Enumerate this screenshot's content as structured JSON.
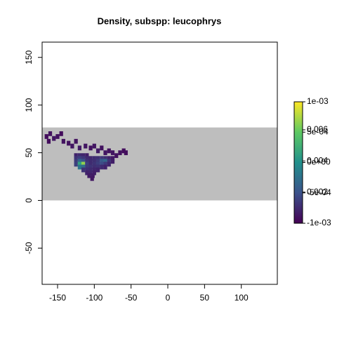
{
  "chart_data": {
    "type": "raster",
    "title": "Density, subspp: leucophrys",
    "xlim": [
      -171,
      149
    ],
    "ylim": [
      -88,
      166
    ],
    "xticks": [
      -150,
      -100,
      -50,
      0,
      50,
      100
    ],
    "yticks": [
      -50,
      0,
      50,
      100,
      150
    ],
    "extent_y": [
      0,
      76.5
    ],
    "background_color": "#bebebe",
    "cell_size": 5,
    "colormap": [
      "#440154",
      "#3b528b",
      "#21908c",
      "#5dc963",
      "#fde725"
    ],
    "cells": [
      [
        -165,
        67,
        0.0003
      ],
      [
        -160,
        70,
        0.0004
      ],
      [
        -155,
        65,
        0.0005
      ],
      [
        -150,
        67,
        0.0004
      ],
      [
        -145,
        70,
        0.0003
      ],
      [
        -142,
        62,
        0.0004
      ],
      [
        -162,
        62,
        0.0003
      ],
      [
        -135,
        60,
        0.0004
      ],
      [
        -130,
        57,
        0.0005
      ],
      [
        -125,
        62,
        0.0004
      ],
      [
        -120,
        55,
        0.0006
      ],
      [
        -112,
        57,
        0.0005
      ],
      [
        -105,
        55,
        0.0004
      ],
      [
        -100,
        57,
        0.0005
      ],
      [
        -95,
        52,
        0.0006
      ],
      [
        -90,
        55,
        0.0004
      ],
      [
        -85,
        50,
        0.0005
      ],
      [
        -80,
        52,
        0.0004
      ],
      [
        -75,
        50,
        0.0005
      ],
      [
        -70,
        47,
        0.0004
      ],
      [
        -65,
        50,
        0.0004
      ],
      [
        -60,
        52,
        0.0003
      ],
      [
        -57,
        50,
        0.0003
      ],
      [
        -125,
        47,
        0.0008
      ],
      [
        -120,
        47,
        0.001
      ],
      [
        -115,
        47,
        0.0009
      ],
      [
        -110,
        47,
        0.0007
      ],
      [
        -125,
        44,
        0.0012
      ],
      [
        -120,
        44,
        0.0015
      ],
      [
        -115,
        44,
        0.0013
      ],
      [
        -110,
        44,
        0.001
      ],
      [
        -105,
        44,
        0.0009
      ],
      [
        -100,
        44,
        0.001
      ],
      [
        -95,
        44,
        0.0011
      ],
      [
        -90,
        44,
        0.0013
      ],
      [
        -85,
        44,
        0.0011
      ],
      [
        -80,
        44,
        0.0008
      ],
      [
        -75,
        44,
        0.0006
      ],
      [
        -125,
        41,
        0.0014
      ],
      [
        -120,
        41,
        0.0025
      ],
      [
        -115,
        41,
        0.002
      ],
      [
        -110,
        41,
        0.0012
      ],
      [
        -105,
        41,
        0.001
      ],
      [
        -100,
        41,
        0.0011
      ],
      [
        -95,
        41,
        0.0014
      ],
      [
        -90,
        41,
        0.0022
      ],
      [
        -85,
        41,
        0.0026
      ],
      [
        -80,
        41,
        0.0012
      ],
      [
        -75,
        41,
        0.0007
      ],
      [
        -125,
        38,
        0.0015
      ],
      [
        -120,
        38,
        0.0045
      ],
      [
        -115,
        38,
        0.0065
      ],
      [
        -110,
        38,
        0.0015
      ],
      [
        -105,
        38,
        0.001
      ],
      [
        -100,
        38,
        0.0012
      ],
      [
        -95,
        38,
        0.0015
      ],
      [
        -90,
        38,
        0.0018
      ],
      [
        -85,
        38,
        0.0014
      ],
      [
        -80,
        38,
        0.0009
      ],
      [
        -120,
        35,
        0.003
      ],
      [
        -115,
        35,
        0.0028
      ],
      [
        -110,
        35,
        0.0014
      ],
      [
        -105,
        35,
        0.0012
      ],
      [
        -100,
        35,
        0.0011
      ],
      [
        -95,
        35,
        0.0012
      ],
      [
        -90,
        35,
        0.001
      ],
      [
        -85,
        35,
        0.0008
      ],
      [
        -115,
        32,
        0.0012
      ],
      [
        -110,
        32,
        0.0011
      ],
      [
        -105,
        32,
        0.001
      ],
      [
        -100,
        32,
        0.0009
      ],
      [
        -95,
        32,
        0.0008
      ],
      [
        -110,
        29,
        0.0008
      ],
      [
        -105,
        29,
        0.0009
      ],
      [
        -100,
        29,
        0.0007
      ],
      [
        -107,
        26,
        0.0006
      ],
      [
        -102,
        26,
        0.0006
      ],
      [
        -103,
        23,
        0.0005
      ]
    ],
    "colorbar": {
      "lim": [
        -0.001,
        0.001
      ],
      "ticks": [
        {
          "value": 0.001,
          "label": "1e-03"
        },
        {
          "value": 0.0005,
          "label": "5e-04"
        },
        {
          "value": 0,
          "label": "0e+00"
        },
        {
          "value": -0.0005,
          "label": "-5e-04"
        },
        {
          "value": -0.001,
          "label": "-1e-03"
        }
      ],
      "lim2": [
        0,
        0.0078
      ],
      "ticks2": [
        0.002,
        0.004,
        0.006
      ]
    }
  }
}
